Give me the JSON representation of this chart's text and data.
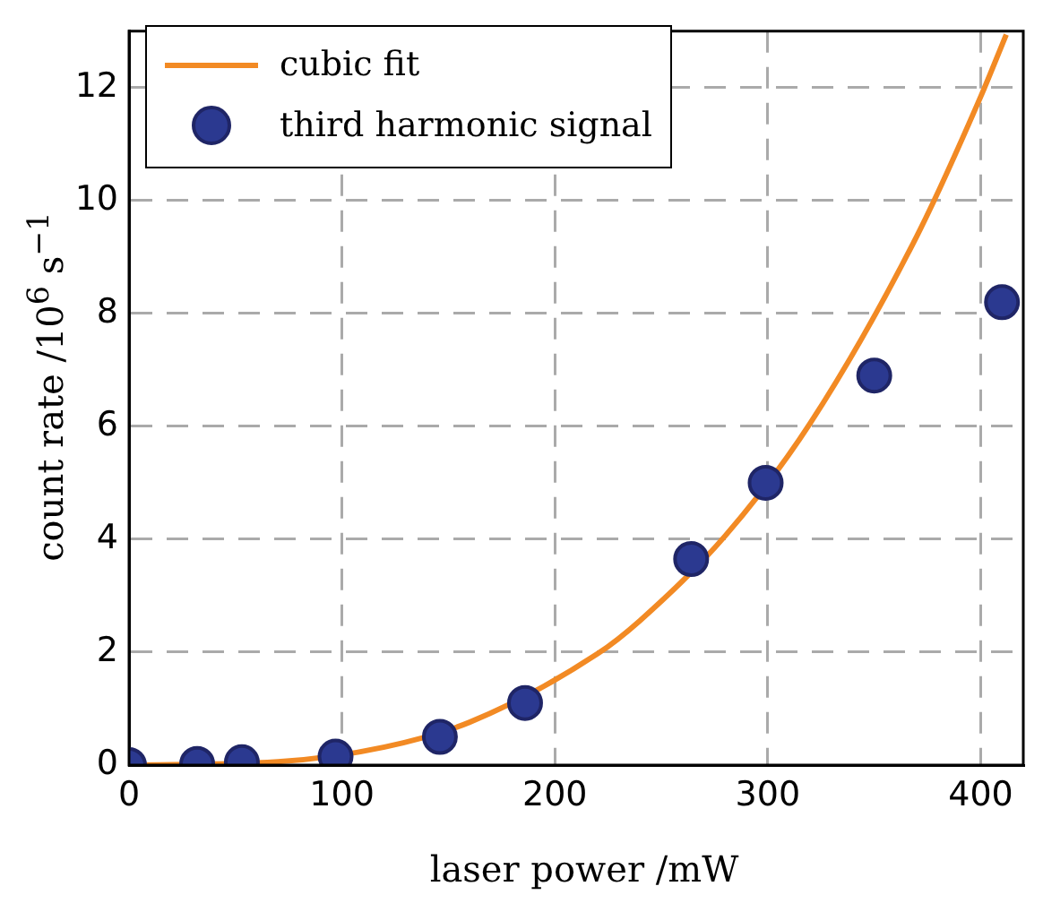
{
  "chart_data": {
    "type": "scatter",
    "xlabel": "laser power /mW",
    "ylabel": "count rate /10$^{6}$ s$^{−1}$",
    "series": [
      {
        "name": "cubic fit",
        "type": "line",
        "color": "#f28a24",
        "marker": "none",
        "line_style": "solid",
        "x": [
          0,
          70,
          120,
          160,
          220,
          240,
          280,
          320,
          370,
          400,
          412
        ],
        "values": [
          0,
          0.06,
          0.32,
          0.76,
          1.97,
          2.56,
          4.06,
          6.06,
          9.37,
          11.84,
          12.94
        ]
      },
      {
        "name": "third harmonic signal",
        "type": "scatter",
        "color": "#2b3990",
        "marker": "circle",
        "x": [
          0,
          32,
          53,
          97,
          146,
          186,
          264,
          299,
          350,
          410
        ],
        "values": [
          0,
          0.02,
          0.05,
          0.15,
          0.5,
          1.1,
          3.65,
          5.0,
          6.9,
          8.2
        ]
      }
    ],
    "xlim": [
      0,
      420
    ],
    "xticks": [
      0,
      100,
      200,
      300,
      400
    ],
    "ylim": [
      0,
      13
    ],
    "yticks": [
      0,
      2,
      4,
      6,
      8,
      10,
      12
    ],
    "grid": true,
    "legend": "top left"
  }
}
